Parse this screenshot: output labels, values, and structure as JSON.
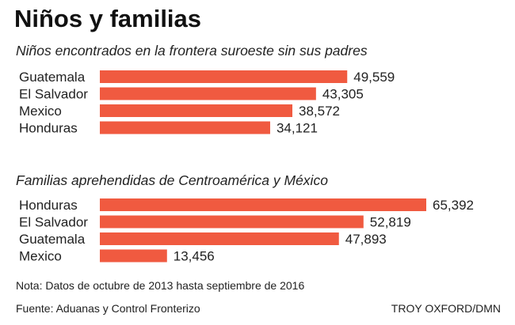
{
  "title": "Niños y familias",
  "colors": {
    "bar": "#f05a40",
    "text": "#222222"
  },
  "chart_data": [
    {
      "type": "bar",
      "orientation": "horizontal",
      "title": "Niños encontrados en la frontera suroeste sin sus padres",
      "categories": [
        "Guatemala",
        "El Salvador",
        "Mexico",
        "Honduras"
      ],
      "values": [
        49559,
        43305,
        38572,
        34121
      ],
      "value_labels": [
        "49,559",
        "43,305",
        "38,572",
        "34,121"
      ],
      "xlim": [
        0,
        65392
      ],
      "grid": false,
      "legend": "none"
    },
    {
      "type": "bar",
      "orientation": "horizontal",
      "title": "Familias aprehendidas de Centroamérica y México",
      "categories": [
        "Honduras",
        "El Salvador",
        "Guatemala",
        "Mexico"
      ],
      "values": [
        65392,
        52819,
        47893,
        13456
      ],
      "value_labels": [
        "65,392",
        "52,819",
        "47,893",
        "13,456"
      ],
      "xlim": [
        0,
        65392
      ],
      "grid": false,
      "legend": "none"
    }
  ],
  "footer": {
    "note": "Nota: Datos de octubre de 2013 hasta septiembre de 2016",
    "source": "Fuente: Aduanas y Control Fronterizo",
    "credit": "TROY OXFORD/DMN"
  }
}
